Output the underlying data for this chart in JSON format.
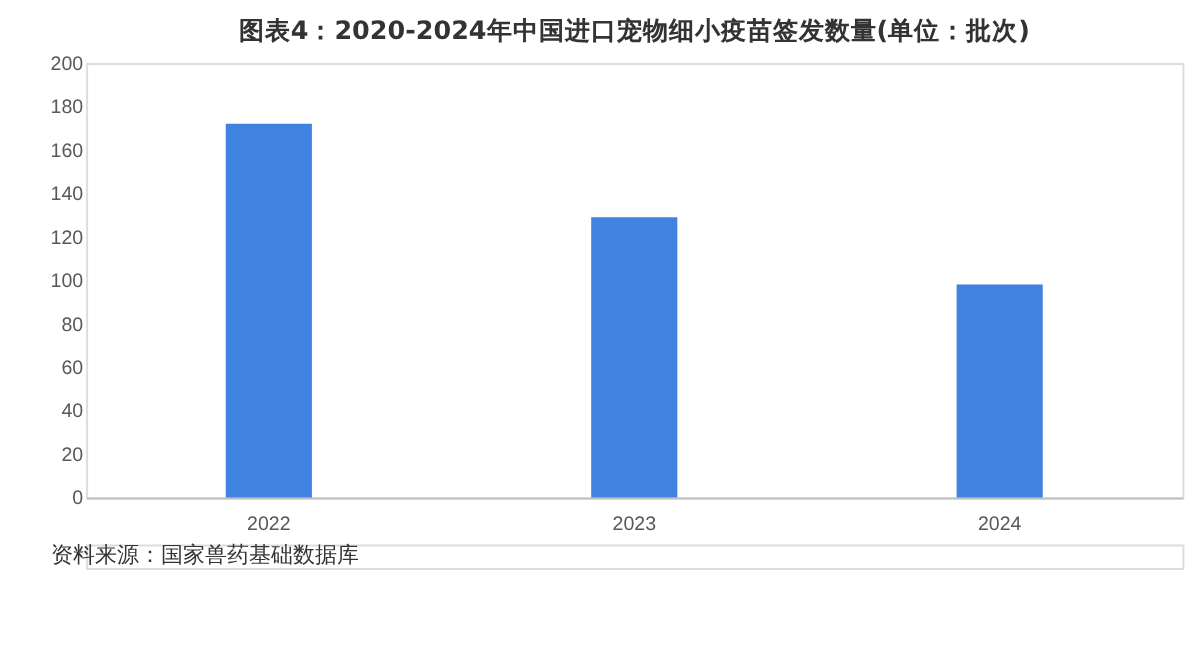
{
  "chart_data": {
    "type": "bar",
    "title": "图表4：2020-2024年中国进口宠物细小疫苗签发数量(单位：批次)",
    "categories": [
      "2022",
      "2023",
      "2024"
    ],
    "values": [
      172,
      129,
      98
    ],
    "color": "#3f82e0",
    "ylim": [
      0,
      200
    ],
    "yticks": [
      0,
      20,
      40,
      60,
      80,
      100,
      120,
      140,
      160,
      180,
      200
    ],
    "grid": false,
    "annotations": [
      "资料来源：国家兽药基础数据库"
    ]
  }
}
